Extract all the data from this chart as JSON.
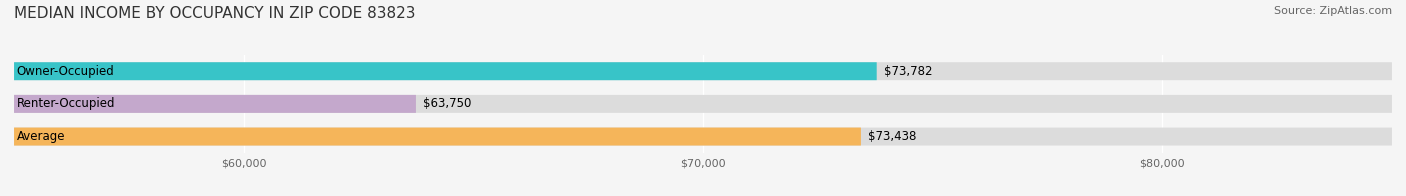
{
  "title": "MEDIAN INCOME BY OCCUPANCY IN ZIP CODE 83823",
  "source": "Source: ZipAtlas.com",
  "categories": [
    "Owner-Occupied",
    "Renter-Occupied",
    "Average"
  ],
  "values": [
    73782,
    63750,
    73438
  ],
  "value_labels": [
    "$73,782",
    "$63,750",
    "$73,438"
  ],
  "bar_colors": [
    "#38C4C8",
    "#C4A8CC",
    "#F5B55A"
  ],
  "bar_bg_color": "#E8E8E8",
  "xlim": [
    55000,
    85000
  ],
  "xticks": [
    60000,
    70000,
    80000
  ],
  "xtick_labels": [
    "$60,000",
    "$70,000",
    "$80,000"
  ],
  "bar_height": 0.55,
  "figsize": [
    14.06,
    1.96
  ],
  "dpi": 100,
  "title_fontsize": 11,
  "label_fontsize": 8.5,
  "value_fontsize": 8.5,
  "tick_fontsize": 8,
  "source_fontsize": 8
}
